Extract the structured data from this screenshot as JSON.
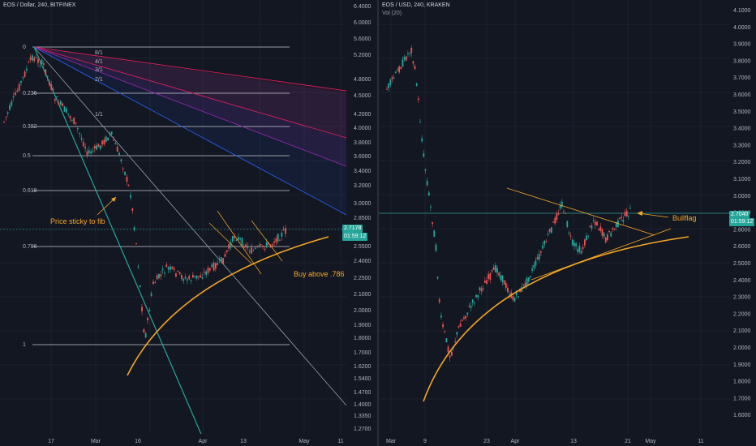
{
  "left_chart": {
    "title": "EOS / Dollar, 240, BITFINEX",
    "price_axis": [
      "6.4000",
      "6.0000",
      "5.6000",
      "5.2000",
      "4.8000",
      "4.5000",
      "4.2000",
      "4.0000",
      "3.8000",
      "3.6000",
      "3.4000",
      "3.2000",
      "3.0000",
      "2.8500",
      "2.5500",
      "2.4000",
      "2.2500",
      "2.1000",
      "2.0000",
      "1.9000",
      "1.8000",
      "1.7000",
      "1.6200",
      "1.5400",
      "1.4700",
      "1.4000",
      "1.3350",
      "1.2700"
    ],
    "time_axis": [
      "17",
      "Mar",
      "16",
      "Apr",
      "13",
      "May",
      "11"
    ],
    "fib_levels": [
      "0",
      "0.236",
      "0.382",
      "0.5",
      "0.618",
      "0.786",
      "1"
    ],
    "fan_labels": [
      "8/1",
      "4/1",
      "3/1",
      "2/1",
      "1/1"
    ],
    "current_price": "2.7178",
    "countdown": "01:59:12",
    "annotation_fib": "Price sticky to fib",
    "annotation_buy": "Buy above .786",
    "colors": {
      "bg": "#131722",
      "accent": "#26a69a",
      "orange": "#f5a623",
      "up": "#26a69a",
      "down": "#ef5350"
    }
  },
  "right_chart": {
    "title": "EOS / USD, 240, KRAKEN",
    "volume_label": "Vol (20)",
    "price_axis": [
      "4.1000",
      "4.0000",
      "3.9000",
      "3.8000",
      "3.7000",
      "3.6000",
      "3.5000",
      "3.4000",
      "3.3000",
      "3.2000",
      "3.1000",
      "3.0000",
      "2.9000",
      "2.8000",
      "2.6000",
      "2.5000",
      "2.4000",
      "2.3000",
      "2.2000",
      "2.1000",
      "2.0000",
      "1.9000",
      "1.8000",
      "1.7000",
      "1.6000",
      "1.5000",
      "1.4000",
      "1.3000",
      "1.2000"
    ],
    "time_axis": [
      "Mar",
      "9",
      "23",
      "Apr",
      "13",
      "21",
      "May",
      "11"
    ],
    "current_price": "2.7040",
    "countdown": "01:59:12",
    "annotation_flag": "Bullflag"
  }
}
